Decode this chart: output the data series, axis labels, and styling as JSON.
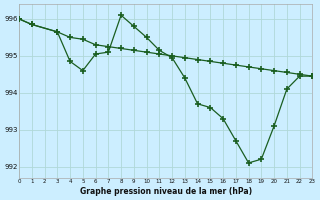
{
  "line1_x": [
    0,
    1,
    3,
    4,
    5,
    6,
    7,
    8,
    9,
    10,
    11,
    12,
    13,
    14,
    15,
    16,
    17,
    18,
    19,
    20,
    21,
    22,
    23
  ],
  "line1_y": [
    996.0,
    995.85,
    995.65,
    995.5,
    995.45,
    995.3,
    995.25,
    995.2,
    995.15,
    995.1,
    995.05,
    995.0,
    994.95,
    994.9,
    994.85,
    994.8,
    994.75,
    994.7,
    994.65,
    994.6,
    994.55,
    994.5,
    994.45
  ],
  "line2_x": [
    0,
    1,
    3,
    4,
    5,
    6,
    7,
    8,
    9,
    10,
    11,
    12,
    13,
    14,
    15,
    16,
    17,
    18,
    19,
    20,
    21,
    22,
    23
  ],
  "line2_y": [
    996.0,
    995.85,
    995.65,
    994.85,
    994.6,
    995.05,
    995.1,
    996.1,
    995.8,
    995.5,
    995.15,
    994.95,
    994.4,
    993.7,
    993.6,
    993.3,
    992.7,
    992.1,
    992.2,
    993.1,
    994.1,
    994.45,
    994.45
  ],
  "bg_color": "#cceeff",
  "line_color": "#1a5e20",
  "grid_color": "#b0d8d8",
  "xlabel": "Graphe pression niveau de la mer (hPa)",
  "ylabel_ticks": [
    992,
    993,
    994,
    995,
    996
  ],
  "xlim": [
    0,
    23
  ],
  "ylim": [
    991.7,
    996.4
  ],
  "xticks": [
    0,
    1,
    2,
    3,
    4,
    5,
    6,
    7,
    8,
    9,
    10,
    11,
    12,
    13,
    14,
    15,
    16,
    17,
    18,
    19,
    20,
    21,
    22,
    23
  ],
  "xtick_labels": [
    "0",
    "1",
    "2",
    "3",
    "4",
    "5",
    "6",
    "7",
    "8",
    "9",
    "10",
    "11",
    "12",
    "13",
    "14",
    "15",
    "16",
    "17",
    "18",
    "19",
    "20",
    "21",
    "22",
    "23"
  ],
  "marker": "+",
  "markersize": 4.0,
  "linewidth": 0.9
}
